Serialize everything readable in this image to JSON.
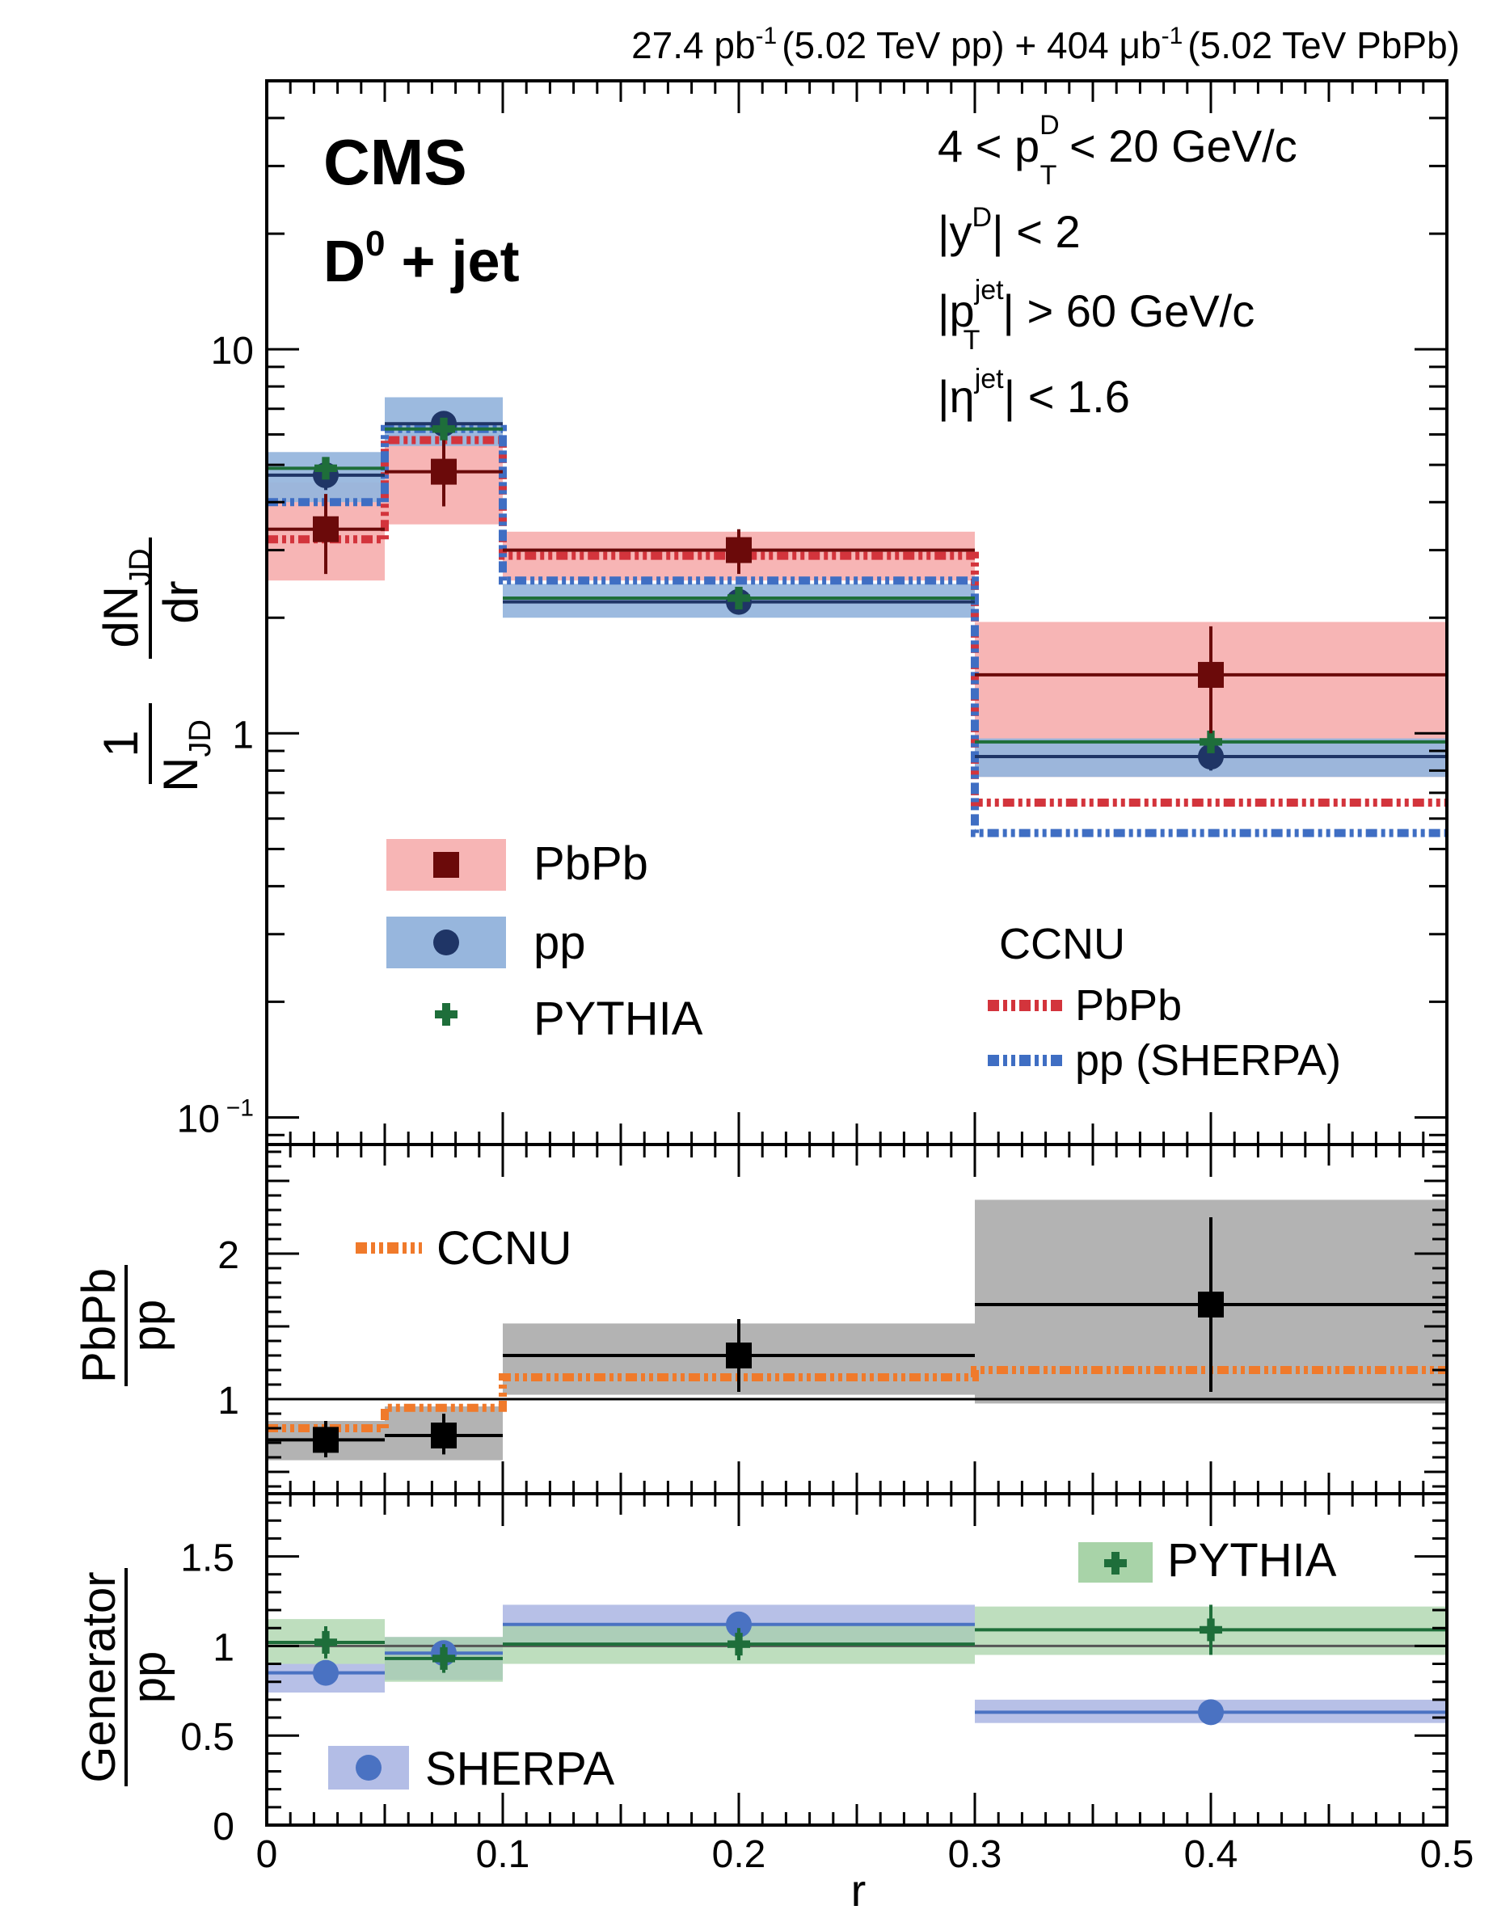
{
  "header": {
    "lumi_pp": "27.4 pb",
    "lumi_pp_exp": "-1",
    "lumi_pp_label": "(5.02 TeV pp) + 404 μb",
    "lumi_pbpb_exp": "-1",
    "lumi_pbpb_label": "(5.02 TeV PbPb)"
  },
  "labels": {
    "experiment": "CMS",
    "process_main": "D",
    "process_sup": "0",
    "process_rest": " + jet",
    "cut1_a": "4 < p",
    "cut1_sup": "D",
    "cut1_sub": "T",
    "cut1_b": " < 20 GeV/c",
    "cut2_a": "|y",
    "cut2_sup": "D",
    "cut2_b": "| < 2",
    "cut3_a": "|p",
    "cut3_sup": "jet",
    "cut3_sub": "T",
    "cut3_b": "| > 60 GeV/c",
    "cut4_a": "|η",
    "cut4_sup": "jet",
    "cut4_b": "| < 1.6"
  },
  "axes": {
    "top_ylabel_num_prefix": "1",
    "top_ylabel_den": "N",
    "top_ylabel_den_sub": "JD",
    "top_ylabel_frac_num": "dN",
    "top_ylabel_frac_num_sub": "JD",
    "top_ylabel_frac_den": "dr",
    "mid_ylabel_num": "PbPb",
    "mid_ylabel_den": "pp",
    "bot_ylabel_num": "Generator",
    "bot_ylabel_den": "pp",
    "xlabel": "r",
    "x_ticks": [
      "0",
      "0.1",
      "0.2",
      "0.3",
      "0.4",
      "0.5"
    ],
    "top_ticks": [
      "10",
      "1",
      "10"
    ],
    "top_tick_exp": "−1",
    "mid_ticks": [
      "1",
      "2"
    ],
    "bot_ticks": [
      "0",
      "0.5",
      "1",
      "1.5"
    ]
  },
  "legend": {
    "pbpb": "PbPb",
    "pp": "pp",
    "pythia": "PYTHIA",
    "ccnu_title": "CCNU",
    "ccnu_pbpb": "PbPb",
    "ccnu_pp": "pp (SHERPA)",
    "ratio_ccnu": "CCNU",
    "gen_pythia": "PYTHIA",
    "gen_sherpa": "SHERPA"
  },
  "colors": {
    "pbpb_marker": "#6b0a0a",
    "pbpb_band": "#f7b5b5",
    "pp_marker": "#1f3566",
    "pp_band": "#97b6dd",
    "pythia": "#1e6e3a",
    "pythia_band": "#a8d3a8",
    "ccnu_pbpb": "#d3343c",
    "ccnu_pp": "#3f6ec3",
    "ratio_marker": "#000000",
    "ratio_band": "#b3b3b3",
    "ccnu_ratio": "#f07a2b",
    "sherpa": "#4a72c2",
    "sherpa_band": "#b3bde6"
  },
  "chart_data": [
    {
      "type": "scatter",
      "panel": "top",
      "log_y": true,
      "xlim": [
        0,
        0.5
      ],
      "ylim": [
        0.085,
        50
      ],
      "bins": [
        [
          0,
          0.05
        ],
        [
          0.05,
          0.1
        ],
        [
          0.1,
          0.3
        ],
        [
          0.3,
          0.5
        ]
      ],
      "series": [
        {
          "name": "PbPb",
          "x": [
            0.025,
            0.075,
            0.2,
            0.4
          ],
          "y": [
            3.4,
            4.8,
            3.0,
            1.42
          ],
          "err_lo": [
            2.6,
            3.9,
            2.6,
            1.0
          ],
          "err_hi": [
            4.2,
            5.8,
            3.4,
            1.9
          ],
          "band_lo": [
            2.5,
            3.5,
            2.5,
            0.77
          ],
          "band_hi": [
            4.5,
            6.0,
            3.35,
            1.95
          ]
        },
        {
          "name": "pp",
          "x": [
            0.025,
            0.075,
            0.2,
            0.4
          ],
          "y": [
            4.7,
            6.4,
            2.2,
            0.87
          ],
          "err_lo": [
            4.3,
            5.9,
            2.05,
            0.8
          ],
          "err_hi": [
            5.1,
            6.9,
            2.35,
            0.94
          ],
          "band_lo": [
            4.0,
            5.6,
            2.0,
            0.77
          ],
          "band_hi": [
            5.4,
            7.5,
            2.45,
            0.97
          ]
        },
        {
          "name": "PYTHIA",
          "x": [
            0.025,
            0.075,
            0.2,
            0.4
          ],
          "y": [
            4.9,
            6.2,
            2.25,
            0.95
          ]
        },
        {
          "name": "CCNU PbPb",
          "step": true,
          "y": [
            3.2,
            5.8,
            2.9,
            0.66
          ]
        },
        {
          "name": "CCNU pp (SHERPA)",
          "step": true,
          "y": [
            4.0,
            6.2,
            2.5,
            0.55
          ]
        }
      ]
    },
    {
      "type": "scatter",
      "panel": "middle",
      "xlim": [
        0,
        0.5
      ],
      "ylim": [
        0.35,
        2.75
      ],
      "series": [
        {
          "name": "PbPb/pp",
          "x": [
            0.025,
            0.075,
            0.2,
            0.4
          ],
          "y": [
            0.72,
            0.75,
            1.3,
            1.65
          ],
          "err_lo": [
            0.6,
            0.62,
            1.05,
            1.05
          ],
          "err_hi": [
            0.85,
            0.9,
            1.55,
            2.25
          ],
          "band_lo": [
            0.58,
            0.58,
            1.03,
            0.97
          ],
          "band_hi": [
            0.85,
            0.95,
            1.52,
            2.37
          ]
        },
        {
          "name": "CCNU",
          "step": true,
          "y": [
            0.8,
            0.94,
            1.15,
            1.2
          ]
        }
      ]
    },
    {
      "type": "scatter",
      "panel": "bottom",
      "xlim": [
        0,
        0.5
      ],
      "ylim": [
        0,
        1.85
      ],
      "series": [
        {
          "name": "PYTHIA",
          "x": [
            0.025,
            0.075,
            0.2,
            0.4
          ],
          "y": [
            1.02,
            0.93,
            1.01,
            1.09
          ],
          "err_lo": [
            0.93,
            0.85,
            0.92,
            0.95
          ],
          "err_hi": [
            1.11,
            1.01,
            1.1,
            1.23
          ],
          "band_lo": [
            0.9,
            0.8,
            0.9,
            0.95
          ],
          "band_hi": [
            1.15,
            1.05,
            1.12,
            1.22
          ]
        },
        {
          "name": "SHERPA",
          "x": [
            0.025,
            0.075,
            0.2,
            0.4
          ],
          "y": [
            0.85,
            0.96,
            1.12,
            0.63
          ],
          "err_lo": [
            0.8,
            0.9,
            1.07,
            0.58
          ],
          "err_hi": [
            0.9,
            1.02,
            1.17,
            0.68
          ],
          "band_lo": [
            0.74,
            0.81,
            1.0,
            0.57
          ],
          "band_hi": [
            0.9,
            1.05,
            1.23,
            0.7
          ]
        }
      ]
    }
  ]
}
